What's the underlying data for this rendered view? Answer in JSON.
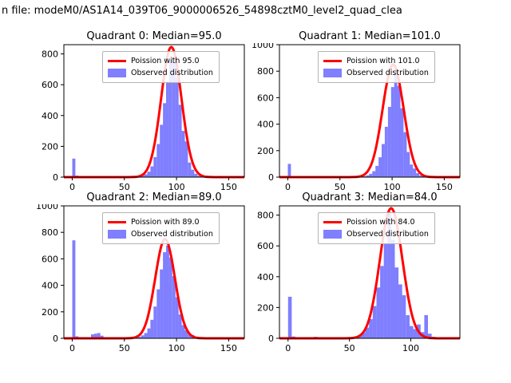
{
  "figure": {
    "title": "n file: modeM0/AS1A14_039T06_9000006526_54898cztM0_level2_quad_clea",
    "background": "#ffffff"
  },
  "colors": {
    "curve": "#ff0000",
    "bars": "#0000ff",
    "bars_opacity": 0.5,
    "axes": "#000000",
    "text": "#000000"
  },
  "chart_data": [
    {
      "type": "bar",
      "title": "Quadrant 0: Median=95.0",
      "median": 95.0,
      "legend": {
        "line": "Poission with 95.0",
        "patch": "Observed distribution"
      },
      "xlabel": "",
      "ylabel": "",
      "xlim": [
        -8,
        165
      ],
      "ylim": [
        0,
        860
      ],
      "xticks": [
        0,
        50,
        100,
        150
      ],
      "yticks": [
        0,
        200,
        400,
        600,
        800
      ],
      "curve": {
        "lambda": 95.0,
        "amplitude": 845
      },
      "bin_width": 3,
      "bins": [
        [
          0,
          120
        ],
        [
          3,
          10
        ],
        [
          27,
          6
        ],
        [
          45,
          5
        ],
        [
          60,
          4
        ],
        [
          63,
          6
        ],
        [
          66,
          10
        ],
        [
          69,
          18
        ],
        [
          72,
          35
        ],
        [
          75,
          70
        ],
        [
          78,
          130
        ],
        [
          81,
          215
        ],
        [
          84,
          340
        ],
        [
          87,
          480
        ],
        [
          90,
          620
        ],
        [
          93,
          755
        ],
        [
          96,
          780
        ],
        [
          99,
          640
        ],
        [
          102,
          470
        ],
        [
          105,
          300
        ],
        [
          108,
          232
        ],
        [
          111,
          95
        ],
        [
          114,
          48
        ],
        [
          117,
          22
        ],
        [
          120,
          10
        ],
        [
          123,
          5
        ],
        [
          147,
          4
        ],
        [
          150,
          3
        ]
      ]
    },
    {
      "type": "bar",
      "title": "Quadrant 1: Median=101.0",
      "median": 101.0,
      "legend": {
        "line": "Poission with 101.0",
        "patch": "Observed distribution"
      },
      "xlabel": "",
      "ylabel": "",
      "xlim": [
        -8,
        165
      ],
      "ylim": [
        0,
        1000
      ],
      "xticks": [
        0,
        50,
        100,
        150
      ],
      "yticks": [
        0,
        200,
        400,
        600,
        800,
        1000
      ],
      "curve": {
        "lambda": 101.0,
        "amplitude": 850
      },
      "bin_width": 3,
      "bins": [
        [
          0,
          100
        ],
        [
          3,
          8
        ],
        [
          33,
          5
        ],
        [
          54,
          4
        ],
        [
          69,
          5
        ],
        [
          72,
          8
        ],
        [
          75,
          14
        ],
        [
          78,
          25
        ],
        [
          81,
          45
        ],
        [
          84,
          85
        ],
        [
          87,
          150
        ],
        [
          90,
          250
        ],
        [
          93,
          380
        ],
        [
          96,
          530
        ],
        [
          99,
          680
        ],
        [
          102,
          780
        ],
        [
          105,
          690
        ],
        [
          108,
          520
        ],
        [
          111,
          340
        ],
        [
          114,
          190
        ],
        [
          117,
          95
        ],
        [
          120,
          65
        ],
        [
          123,
          30
        ],
        [
          126,
          14
        ],
        [
          129,
          7
        ],
        [
          150,
          5
        ],
        [
          153,
          4
        ]
      ]
    },
    {
      "type": "bar",
      "title": "Quadrant 2: Median=89.0",
      "median": 89.0,
      "legend": {
        "line": "Poission with 89.0",
        "patch": "Observed distribution"
      },
      "xlabel": "",
      "ylabel": "",
      "xlim": [
        -8,
        165
      ],
      "ylim": [
        0,
        1000
      ],
      "xticks": [
        0,
        50,
        100,
        150
      ],
      "yticks": [
        0,
        200,
        400,
        600,
        800,
        1000
      ],
      "curve": {
        "lambda": 89.0,
        "amplitude": 750
      },
      "bin_width": 3,
      "bins": [
        [
          0,
          740
        ],
        [
          3,
          15
        ],
        [
          18,
          30
        ],
        [
          21,
          35
        ],
        [
          24,
          40
        ],
        [
          27,
          20
        ],
        [
          57,
          5
        ],
        [
          60,
          7
        ],
        [
          63,
          12
        ],
        [
          66,
          22
        ],
        [
          69,
          40
        ],
        [
          72,
          75
        ],
        [
          75,
          140
        ],
        [
          78,
          240
        ],
        [
          81,
          370
        ],
        [
          84,
          520
        ],
        [
          87,
          650
        ],
        [
          90,
          700
        ],
        [
          93,
          610
        ],
        [
          96,
          470
        ],
        [
          99,
          310
        ],
        [
          102,
          180
        ],
        [
          105,
          100
        ],
        [
          108,
          60
        ],
        [
          111,
          30
        ],
        [
          114,
          25
        ],
        [
          117,
          12
        ],
        [
          120,
          6
        ],
        [
          150,
          4
        ]
      ]
    },
    {
      "type": "bar",
      "title": "Quadrant 3: Median=84.0",
      "median": 84.0,
      "legend": {
        "line": "Poission with 84.0",
        "patch": "Observed distribution"
      },
      "xlabel": "",
      "ylabel": "",
      "xlim": [
        -7,
        140
      ],
      "ylim": [
        0,
        860
      ],
      "xticks": [
        0,
        50,
        100
      ],
      "yticks": [
        0,
        200,
        400,
        600,
        800
      ],
      "curve": {
        "lambda": 84.0,
        "amplitude": 845
      },
      "bin_width": 3,
      "bins": [
        [
          0,
          270
        ],
        [
          3,
          12
        ],
        [
          21,
          10
        ],
        [
          24,
          8
        ],
        [
          45,
          5
        ],
        [
          48,
          6
        ],
        [
          51,
          8
        ],
        [
          54,
          12
        ],
        [
          57,
          20
        ],
        [
          60,
          38
        ],
        [
          63,
          70
        ],
        [
          66,
          125
        ],
        [
          69,
          210
        ],
        [
          72,
          330
        ],
        [
          75,
          470
        ],
        [
          78,
          620
        ],
        [
          81,
          820
        ],
        [
          84,
          640
        ],
        [
          87,
          460
        ],
        [
          90,
          350
        ],
        [
          93,
          280
        ],
        [
          96,
          150
        ],
        [
          99,
          80
        ],
        [
          102,
          60
        ],
        [
          105,
          90
        ],
        [
          108,
          40
        ],
        [
          111,
          150
        ],
        [
          114,
          30
        ],
        [
          117,
          10
        ]
      ]
    }
  ]
}
